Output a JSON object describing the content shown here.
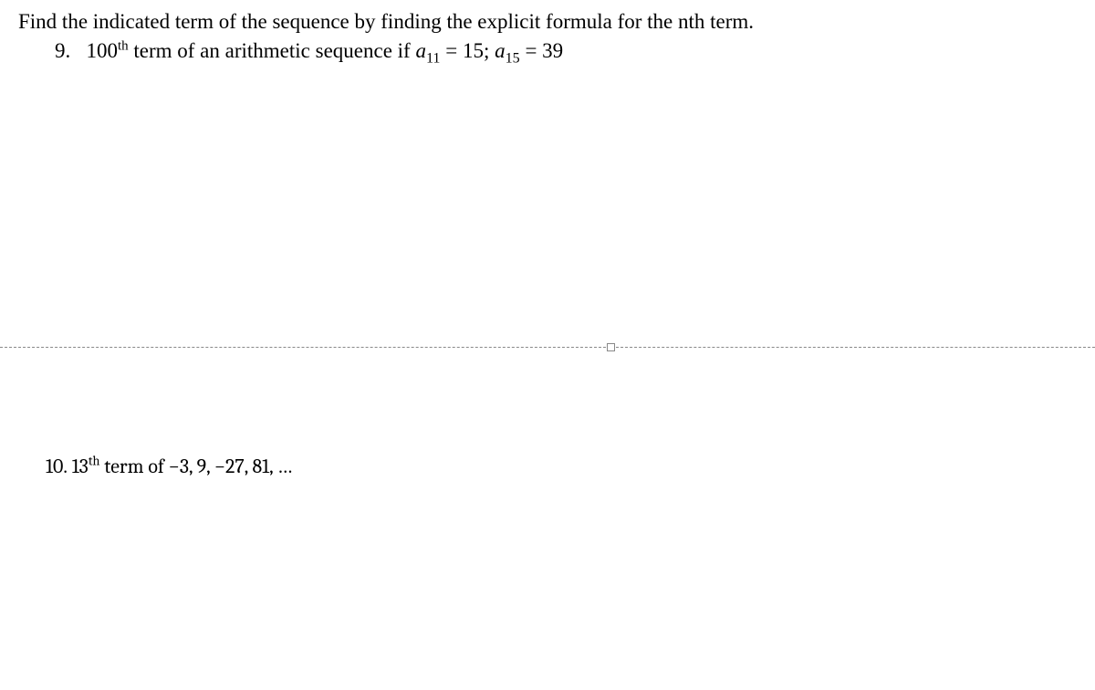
{
  "instruction": "Find the indicated term of the sequence by finding the explicit formula for the nth term.",
  "problem9": {
    "number": "9.",
    "text_before_sup": "100",
    "sup": "th",
    "text_after_sup": " term of an arithmetic sequence if ",
    "var1": "a",
    "sub1": "11",
    "eq1": " =  15; ",
    "var2": "a",
    "sub2": "15",
    "eq2": " = 39"
  },
  "problem10": {
    "number": "10.",
    "text_before_sup": "13",
    "sup": "th",
    "text_after_sup": " term of −3, 9, −27, 81, …"
  },
  "colors": {
    "text": "#000000",
    "background": "#ffffff",
    "divider": "#888888"
  }
}
